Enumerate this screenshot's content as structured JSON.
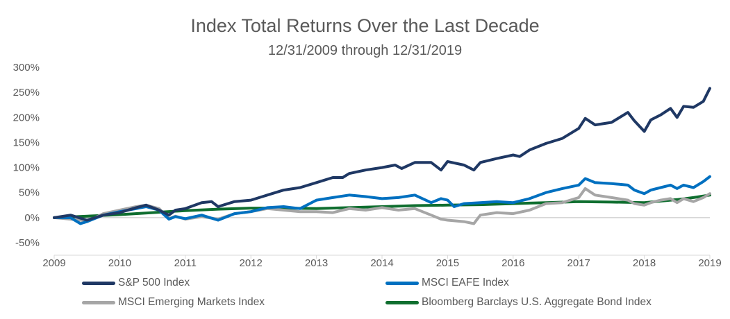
{
  "header": {
    "title": "Index Total Returns Over the Last Decade",
    "subtitle": "12/31/2009 through 12/31/2019"
  },
  "chart_data": {
    "type": "line",
    "title": "Index Total Returns Over the Last Decade",
    "subtitle": "12/31/2009 through 12/31/2019",
    "xlabel": "",
    "ylabel": "",
    "xlim": [
      2009,
      2019
    ],
    "ylim": [
      -50,
      300
    ],
    "x_ticks": [
      "2009",
      "2010",
      "2011",
      "2012",
      "2013",
      "2014",
      "2015",
      "2016",
      "2017",
      "2018",
      "2019"
    ],
    "y_ticks": [
      "-50%",
      "0%",
      "50%",
      "100%",
      "150%",
      "200%",
      "250%",
      "300%"
    ],
    "grid": false,
    "legend_position": "bottom",
    "series": [
      {
        "name": "S&P 500 Index",
        "color": "#1f3864",
        "points": [
          [
            2009.0,
            0
          ],
          [
            2009.25,
            5
          ],
          [
            2009.5,
            -5
          ],
          [
            2009.75,
            5
          ],
          [
            2010.0,
            10
          ],
          [
            2010.25,
            20
          ],
          [
            2010.4,
            25
          ],
          [
            2010.6,
            15
          ],
          [
            2010.75,
            5
          ],
          [
            2010.85,
            15
          ],
          [
            2011.0,
            18
          ],
          [
            2011.25,
            30
          ],
          [
            2011.4,
            32
          ],
          [
            2011.5,
            22
          ],
          [
            2011.75,
            32
          ],
          [
            2012.0,
            35
          ],
          [
            2012.25,
            45
          ],
          [
            2012.5,
            55
          ],
          [
            2012.75,
            60
          ],
          [
            2013.0,
            70
          ],
          [
            2013.25,
            80
          ],
          [
            2013.4,
            80
          ],
          [
            2013.5,
            88
          ],
          [
            2013.75,
            95
          ],
          [
            2014.0,
            100
          ],
          [
            2014.2,
            105
          ],
          [
            2014.3,
            98
          ],
          [
            2014.5,
            110
          ],
          [
            2014.75,
            110
          ],
          [
            2014.9,
            95
          ],
          [
            2015.0,
            112
          ],
          [
            2015.25,
            105
          ],
          [
            2015.4,
            95
          ],
          [
            2015.5,
            110
          ],
          [
            2015.75,
            118
          ],
          [
            2016.0,
            125
          ],
          [
            2016.1,
            122
          ],
          [
            2016.25,
            135
          ],
          [
            2016.5,
            148
          ],
          [
            2016.75,
            158
          ],
          [
            2017.0,
            178
          ],
          [
            2017.1,
            198
          ],
          [
            2017.25,
            185
          ],
          [
            2017.5,
            190
          ],
          [
            2017.75,
            210
          ],
          [
            2017.85,
            193
          ],
          [
            2018.0,
            172
          ],
          [
            2018.1,
            195
          ],
          [
            2018.25,
            205
          ],
          [
            2018.4,
            218
          ],
          [
            2018.5,
            200
          ],
          [
            2018.6,
            222
          ],
          [
            2018.75,
            220
          ],
          [
            2018.9,
            232
          ],
          [
            2019.0,
            258
          ]
        ]
      },
      {
        "name": "MSCI EAFE Index",
        "color": "#0070c0",
        "points": [
          [
            2009.0,
            0
          ],
          [
            2009.25,
            0
          ],
          [
            2009.4,
            -12
          ],
          [
            2009.5,
            -8
          ],
          [
            2009.75,
            5
          ],
          [
            2010.0,
            12
          ],
          [
            2010.25,
            18
          ],
          [
            2010.4,
            22
          ],
          [
            2010.6,
            15
          ],
          [
            2010.75,
            -3
          ],
          [
            2010.85,
            2
          ],
          [
            2011.0,
            -2
          ],
          [
            2011.25,
            5
          ],
          [
            2011.5,
            -5
          ],
          [
            2011.75,
            8
          ],
          [
            2012.0,
            12
          ],
          [
            2012.25,
            20
          ],
          [
            2012.5,
            22
          ],
          [
            2012.75,
            18
          ],
          [
            2013.0,
            35
          ],
          [
            2013.25,
            40
          ],
          [
            2013.5,
            45
          ],
          [
            2013.75,
            42
          ],
          [
            2014.0,
            38
          ],
          [
            2014.25,
            40
          ],
          [
            2014.5,
            45
          ],
          [
            2014.75,
            30
          ],
          [
            2014.9,
            38
          ],
          [
            2015.0,
            35
          ],
          [
            2015.1,
            22
          ],
          [
            2015.25,
            28
          ],
          [
            2015.5,
            30
          ],
          [
            2015.75,
            32
          ],
          [
            2016.0,
            30
          ],
          [
            2016.25,
            38
          ],
          [
            2016.5,
            50
          ],
          [
            2016.75,
            58
          ],
          [
            2017.0,
            65
          ],
          [
            2017.1,
            78
          ],
          [
            2017.25,
            70
          ],
          [
            2017.5,
            68
          ],
          [
            2017.75,
            65
          ],
          [
            2017.85,
            55
          ],
          [
            2018.0,
            48
          ],
          [
            2018.1,
            55
          ],
          [
            2018.25,
            60
          ],
          [
            2018.4,
            65
          ],
          [
            2018.5,
            58
          ],
          [
            2018.6,
            65
          ],
          [
            2018.75,
            60
          ],
          [
            2018.9,
            72
          ],
          [
            2019.0,
            82
          ]
        ]
      },
      {
        "name": "MSCI Emerging Markets Index",
        "color": "#a6a6a6",
        "points": [
          [
            2009.0,
            0
          ],
          [
            2009.25,
            -3
          ],
          [
            2009.4,
            -5
          ],
          [
            2009.5,
            -8
          ],
          [
            2009.75,
            8
          ],
          [
            2010.0,
            15
          ],
          [
            2010.25,
            22
          ],
          [
            2010.4,
            25
          ],
          [
            2010.6,
            18
          ],
          [
            2010.75,
            -2
          ],
          [
            2010.85,
            3
          ],
          [
            2011.0,
            -3
          ],
          [
            2011.25,
            2
          ],
          [
            2011.5,
            -3
          ],
          [
            2011.75,
            8
          ],
          [
            2012.0,
            12
          ],
          [
            2012.25,
            18
          ],
          [
            2012.5,
            15
          ],
          [
            2012.75,
            12
          ],
          [
            2013.0,
            12
          ],
          [
            2013.25,
            10
          ],
          [
            2013.5,
            18
          ],
          [
            2013.75,
            15
          ],
          [
            2014.0,
            20
          ],
          [
            2014.25,
            15
          ],
          [
            2014.5,
            18
          ],
          [
            2014.75,
            5
          ],
          [
            2014.9,
            -3
          ],
          [
            2015.0,
            -5
          ],
          [
            2015.25,
            -8
          ],
          [
            2015.4,
            -12
          ],
          [
            2015.5,
            5
          ],
          [
            2015.75,
            10
          ],
          [
            2016.0,
            8
          ],
          [
            2016.25,
            15
          ],
          [
            2016.5,
            28
          ],
          [
            2016.75,
            30
          ],
          [
            2017.0,
            40
          ],
          [
            2017.1,
            58
          ],
          [
            2017.25,
            45
          ],
          [
            2017.5,
            40
          ],
          [
            2017.75,
            35
          ],
          [
            2017.85,
            28
          ],
          [
            2018.0,
            25
          ],
          [
            2018.1,
            30
          ],
          [
            2018.25,
            35
          ],
          [
            2018.4,
            38
          ],
          [
            2018.5,
            30
          ],
          [
            2018.6,
            38
          ],
          [
            2018.75,
            32
          ],
          [
            2018.9,
            40
          ],
          [
            2019.0,
            48
          ]
        ]
      },
      {
        "name": "Bloomberg Barclays U.S. Aggregate Bond Index",
        "color": "#0f6e2f",
        "points": [
          [
            2009.0,
            0
          ],
          [
            2009.5,
            3
          ],
          [
            2010.0,
            6
          ],
          [
            2010.5,
            10
          ],
          [
            2011.0,
            14
          ],
          [
            2011.5,
            17
          ],
          [
            2012.0,
            19
          ],
          [
            2012.5,
            19
          ],
          [
            2013.0,
            18
          ],
          [
            2013.5,
            20
          ],
          [
            2014.0,
            22
          ],
          [
            2014.5,
            24
          ],
          [
            2015.0,
            25
          ],
          [
            2015.5,
            26
          ],
          [
            2016.0,
            28
          ],
          [
            2016.5,
            30
          ],
          [
            2017.0,
            32
          ],
          [
            2017.5,
            31
          ],
          [
            2018.0,
            30
          ],
          [
            2018.5,
            36
          ],
          [
            2018.75,
            40
          ],
          [
            2019.0,
            45
          ]
        ]
      }
    ]
  }
}
